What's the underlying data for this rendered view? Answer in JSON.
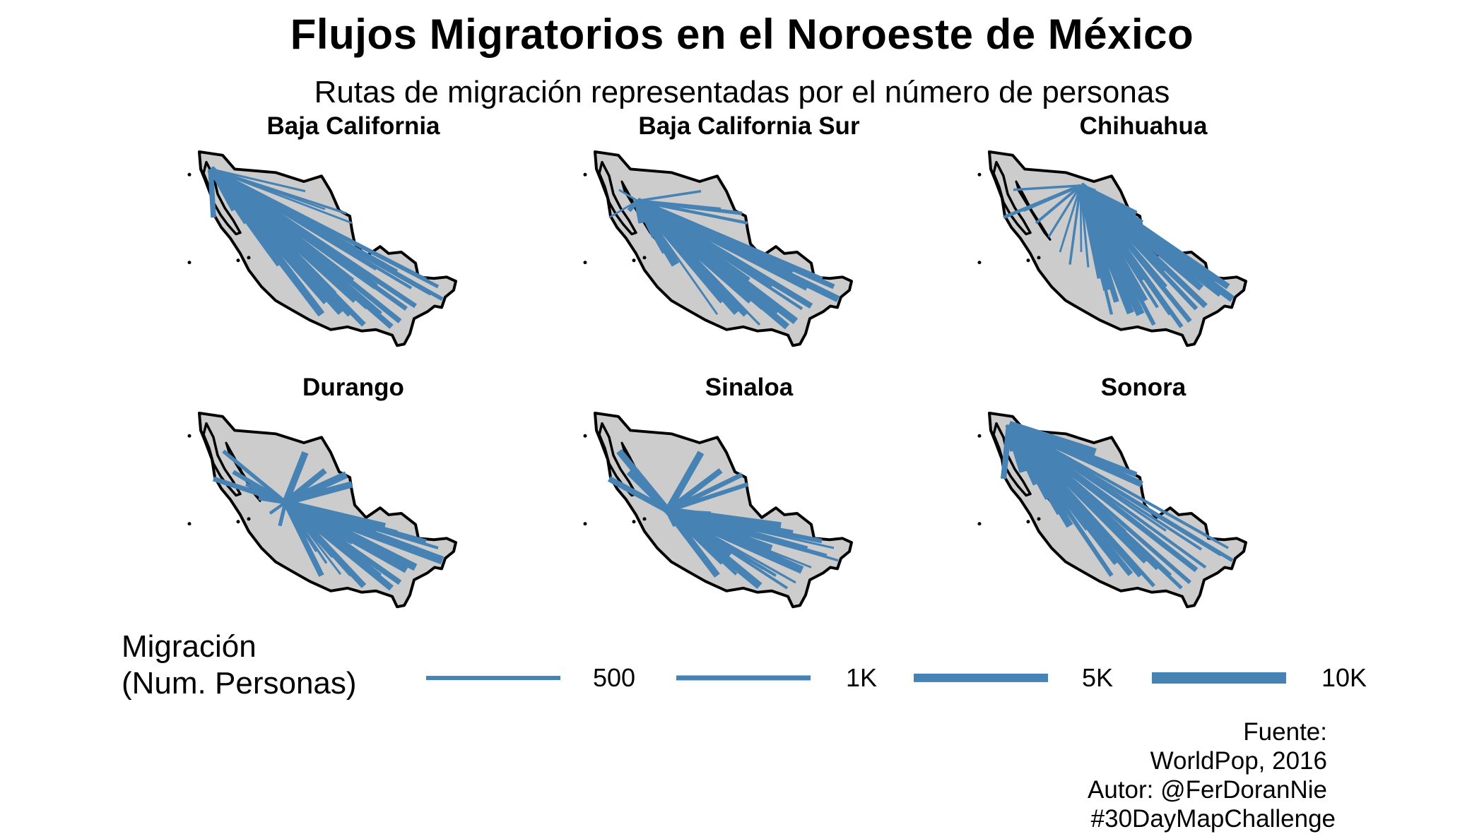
{
  "title": "Flujos Migratorios en el Noroeste de México",
  "subtitle": "Rutas de migración representadas por el número de personas",
  "colors": {
    "flow": "#4682b4",
    "land": "#cccccc",
    "border": "#000000"
  },
  "chart_data": {
    "type": "flow-map",
    "panels": [
      {
        "origin": "Baja California"
      },
      {
        "origin": "Baja California Sur"
      },
      {
        "origin": "Chihuahua"
      },
      {
        "origin": "Durango"
      },
      {
        "origin": "Sinaloa"
      },
      {
        "origin": "Sonora"
      }
    ],
    "legend": {
      "title_line1": "Migración",
      "title_line2": "(Num. Personas)",
      "items": [
        {
          "label": "500",
          "value": 500
        },
        {
          "label": "1K",
          "value": 1000
        },
        {
          "label": "5K",
          "value": 5000
        },
        {
          "label": "10K",
          "value": 10000
        }
      ]
    }
  },
  "caption": {
    "line1": "Fuente:",
    "line2": "WorldPop, 2016",
    "line3": "Autor:  @FerDoranNie",
    "line4": "#30DayMapChallenge"
  }
}
